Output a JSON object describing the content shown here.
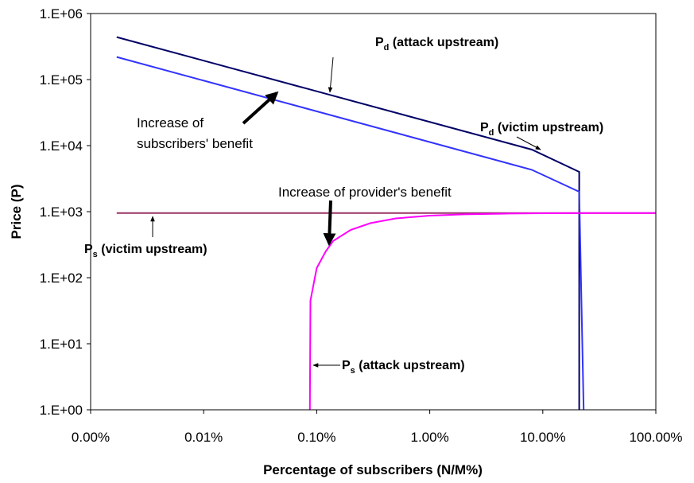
{
  "chart_data": {
    "type": "line",
    "xlabel": "Percentage of subscribers (N/M%)",
    "ylabel": "Price (P)",
    "xscale": "log",
    "yscale": "log",
    "xlim": [
      0.001,
      100
    ],
    "ylim": [
      1,
      1000000
    ],
    "xticks": [
      {
        "value": 0.001,
        "label": "0.00%"
      },
      {
        "value": 0.01,
        "label": "0.01%"
      },
      {
        "value": 0.1,
        "label": "0.10%"
      },
      {
        "value": 1,
        "label": "1.00%"
      },
      {
        "value": 10,
        "label": "10.00%"
      },
      {
        "value": 100,
        "label": "100.00%"
      }
    ],
    "yticks": [
      {
        "value": 1,
        "label": "1.E+00"
      },
      {
        "value": 10,
        "label": "1.E+01"
      },
      {
        "value": 100,
        "label": "1.E+02"
      },
      {
        "value": 1000,
        "label": "1.E+03"
      },
      {
        "value": 10000,
        "label": "1.E+04"
      },
      {
        "value": 100000,
        "label": "1.E+05"
      },
      {
        "value": 1000000,
        "label": "1.E+06"
      }
    ],
    "series": [
      {
        "color": "#000066",
        "x": [
          0.0017,
          8,
          21,
          21
        ],
        "values": [
          440000,
          8700,
          4000,
          1
        ]
      },
      {
        "color": "#3333ff",
        "x": [
          0.0017,
          8,
          21,
          23
        ],
        "values": [
          220000,
          4300,
          2000,
          1
        ]
      },
      {
        "color": "#993366",
        "x": [
          0.0017,
          100
        ],
        "values": [
          950,
          950
        ]
      },
      {
        "color": "#ff00ff",
        "x": [
          0.087,
          0.088,
          0.1,
          0.12,
          0.14,
          0.2,
          0.3,
          0.5,
          1,
          2,
          5,
          10,
          30,
          100
        ],
        "values": [
          1,
          45,
          140,
          250,
          360,
          530,
          670,
          790,
          870,
          910,
          935,
          945,
          950,
          950
        ]
      }
    ],
    "annotations": [
      {
        "text": "P",
        "sub": "d",
        "rest": " (attack upstream)"
      },
      {
        "text": "P",
        "sub": "d",
        "rest": " (victim upstream)"
      },
      {
        "lines": [
          "Increase of",
          "subscribers' benefit"
        ]
      },
      {
        "lines": [
          "Increase of provider's benefit"
        ]
      },
      {
        "text": "P",
        "sub": "s",
        "rest": " (victim upstream)"
      },
      {
        "text": "P",
        "sub": "s",
        "rest": " (attack upstream)"
      }
    ]
  }
}
